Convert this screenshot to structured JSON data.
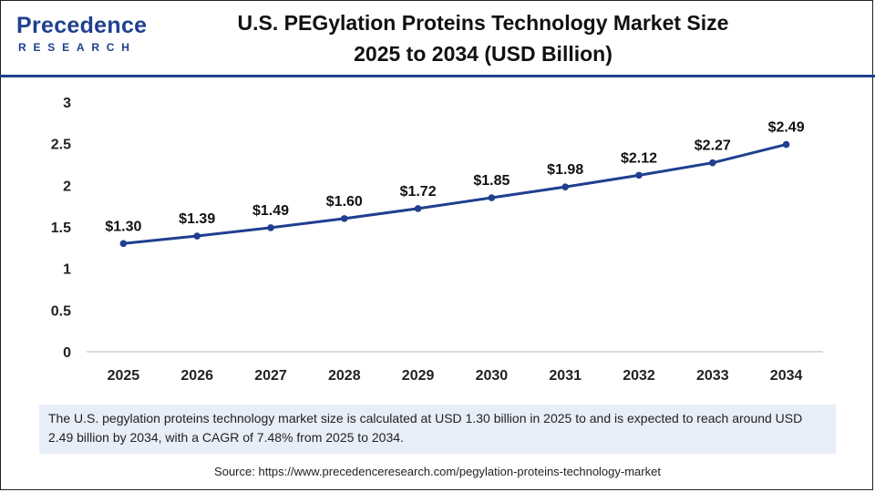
{
  "brand": {
    "name": "Precedence",
    "sub": "RESEARCH",
    "color": "#1f3f8f"
  },
  "title": {
    "line1": "U.S. PEGylation Proteins Technology Market Size",
    "line2": "2025 to 2034 (USD Billion)"
  },
  "summary": "The U.S. pegylation proteins technology market size is calculated at USD 1.30 billion in 2025 to and is expected to reach around USD 2.49 billion by 2034, with a CAGR of 7.48% from 2025 to 2034.",
  "source": "Source: https://www.precedenceresearch.com/pegylation-proteins-technology-market",
  "chart_data": {
    "type": "line",
    "title": "U.S. PEGylation Proteins Technology Market Size 2025 to 2034 (USD Billion)",
    "xlabel": "",
    "ylabel": "",
    "categories": [
      "2025",
      "2026",
      "2027",
      "2028",
      "2029",
      "2030",
      "2031",
      "2032",
      "2033",
      "2034"
    ],
    "values": [
      1.3,
      1.39,
      1.49,
      1.6,
      1.72,
      1.85,
      1.98,
      2.12,
      2.27,
      2.49
    ],
    "value_labels": [
      "$1.30",
      "$1.39",
      "$1.49",
      "$1.60",
      "$1.72",
      "$1.85",
      "$1.98",
      "$2.12",
      "$2.27",
      "$2.49"
    ],
    "ylim": [
      0,
      3
    ],
    "yticks": [
      "0",
      "0.5",
      "1",
      "1.5",
      "2",
      "2.5",
      "3"
    ],
    "grid": false,
    "series_color": "#1f3f8f"
  }
}
